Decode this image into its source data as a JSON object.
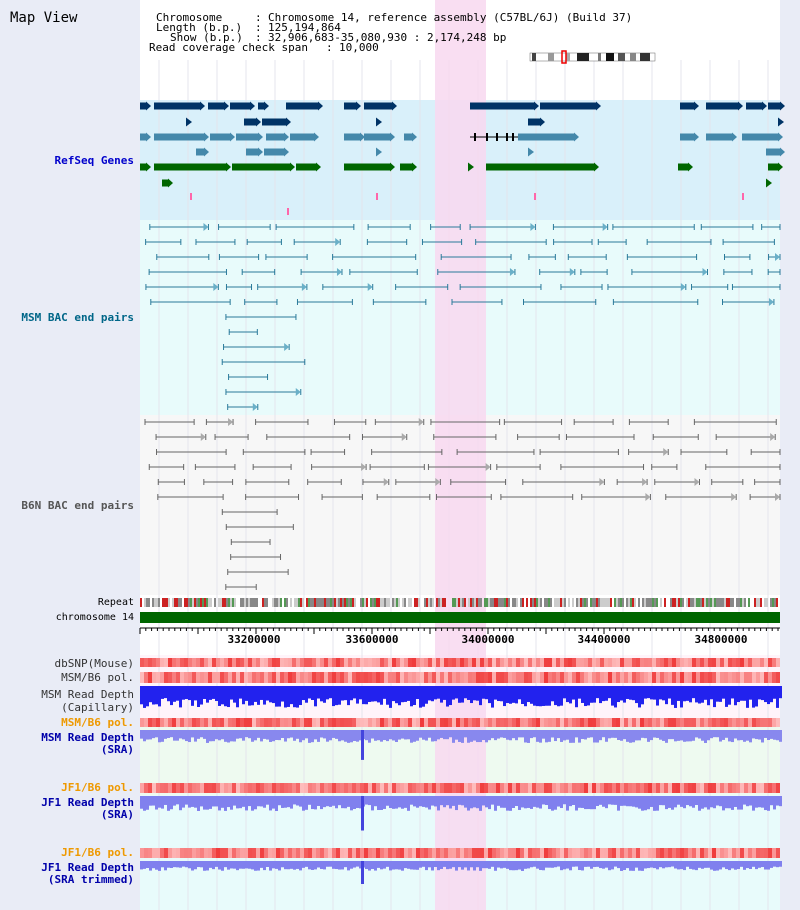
{
  "view_title": "Map View",
  "info": {
    "chromosome_label": "Chromosome",
    "chromosome_value": "Chromosome 14, reference assembly (C57BL/6J) (Build 37)",
    "length_label": "Length (b.p.)",
    "length_value": "125,194,864",
    "show_label": "Show (b.p.)",
    "show_value": "32,906,683-35,080,930 : 2,174,248 bp",
    "coverage_label": "Read coverage check span",
    "coverage_value": "10,000"
  },
  "tracks": {
    "refseq": "RefSeq Genes",
    "msm_bac": "MSM BAC end pairs",
    "b6n_bac": "B6N BAC end pairs",
    "repeat": "Repeat",
    "chromosome": "chromosome 14",
    "dbsnp": "dbSNP(Mouse)",
    "msm_b6_pol_1": "MSM/B6 pol.",
    "msm_read_depth_cap_1": "MSM Read Depth",
    "msm_read_depth_cap_2": "(Capillary)",
    "msm_b6_pol_2": "MSM/B6 pol.",
    "msm_read_depth_sra_1": "MSM Read Depth",
    "msm_read_depth_sra_2": "(SRA)",
    "jf1_b6_pol_1": "JF1/B6 pol.",
    "jf1_read_depth_sra_1": "JF1 Read Depth",
    "jf1_read_depth_sra_2": "(SRA)",
    "jf1_b6_pol_2": "JF1/B6 pol.",
    "jf1_read_depth_trim_1": "JF1 Read Depth",
    "jf1_read_depth_trim_2": "(SRA trimmed)"
  },
  "axis": {
    "ticks": [
      "33200000",
      "33600000",
      "34000000",
      "34400000",
      "34800000"
    ]
  },
  "colors": {
    "refseq_label": "#0000cc",
    "msm_label": "#006688",
    "b6n_label": "#555555",
    "pol_label": "#ee9900",
    "depth_label": "#0000aa",
    "highlight": "#f8d8f0",
    "gene_navy": "#003366",
    "gene_teal": "#4488aa",
    "gene_green": "#006600"
  }
}
